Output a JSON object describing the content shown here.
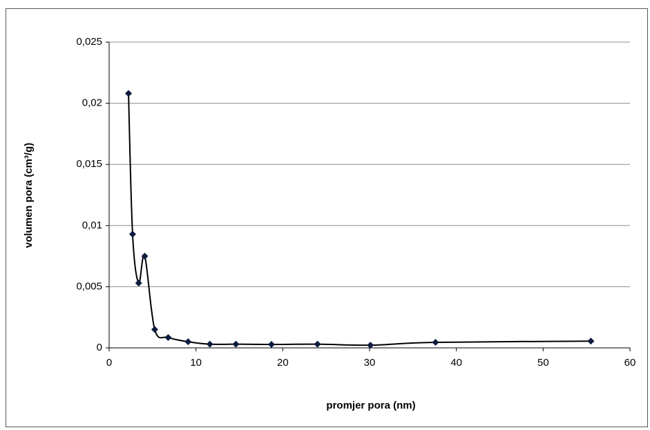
{
  "chart_data": {
    "type": "scatter-smooth",
    "xlabel": "promjer pora (nm)",
    "ylabel": "volumen pora (cm³/g)",
    "x": [
      2.23,
      2.7,
      3.4,
      4.1,
      5.25,
      6.8,
      9.1,
      11.6,
      14.6,
      18.7,
      24.0,
      30.1,
      37.6,
      55.5
    ],
    "values": [
      0.0208,
      0.0093,
      0.0053,
      0.0075,
      0.0015,
      0.00085,
      0.0005,
      0.0003,
      0.0003,
      0.00028,
      0.0003,
      0.00022,
      0.00045,
      0.00055
    ],
    "color": "#000000",
    "marker_color": "#0d1b3e",
    "xlim": [
      0,
      60
    ],
    "xticks": [
      0,
      10,
      20,
      30,
      40,
      50,
      60
    ],
    "ylim": [
      0,
      0.025
    ],
    "yticks": [
      0,
      {
        "value": 0.005,
        "label": "0,005"
      },
      {
        "value": 0.01,
        "label": "0,01"
      },
      {
        "value": 0.015,
        "label": "0,015"
      },
      {
        "value": 0.02,
        "label": "0,02"
      },
      {
        "value": 0.025,
        "label": "0,025"
      }
    ],
    "grid": true
  }
}
